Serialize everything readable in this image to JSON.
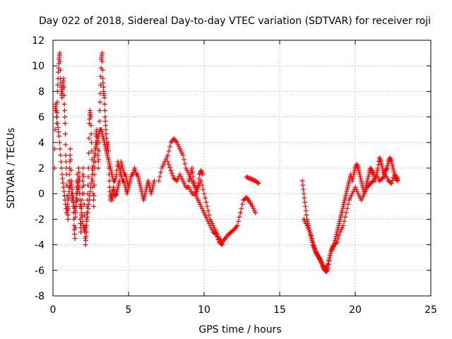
{
  "chart_data": {
    "type": "scatter",
    "title": "Day 022 of 2018, Sidereal Day-to-day VTEC variation (SDTVAR) for receiver roji",
    "xlabel": "GPS time / hours",
    "ylabel": "SDTVAR / TECUs",
    "xlim": [
      0,
      25
    ],
    "ylim": [
      -8,
      12
    ],
    "xticks": [
      0,
      5,
      10,
      15,
      20,
      25
    ],
    "yticks": [
      -8,
      -6,
      -4,
      -2,
      0,
      2,
      4,
      6,
      8,
      10,
      12
    ],
    "grid": true,
    "marker": "+",
    "series": [
      {
        "name": "SDTVAR",
        "color": "#ff0000",
        "segments": [
          {
            "x": [
              0.1,
              0.15,
              0.2,
              0.25,
              0.3,
              0.35,
              0.4,
              0.45,
              0.5,
              0.55,
              0.6,
              0.65,
              0.7,
              0.75,
              0.8,
              0.85,
              0.9,
              0.95,
              1.0,
              1.05,
              1.1,
              1.15,
              1.2,
              1.25,
              1.3,
              1.35,
              1.4,
              1.45,
              1.5,
              1.55,
              1.6,
              1.65,
              1.7,
              1.75,
              1.8,
              1.85,
              1.9,
              1.95,
              2.0,
              2.05,
              2.1,
              2.15,
              2.2,
              2.25,
              2.3,
              2.35,
              2.4,
              2.45,
              2.5,
              2.55,
              2.6,
              2.65,
              2.7,
              2.75,
              2.8,
              2.85,
              2.9,
              2.95,
              3.0,
              3.05,
              3.1,
              3.15,
              3.2,
              3.25,
              3.3,
              3.35,
              3.4,
              3.45,
              3.5,
              3.55,
              3.6,
              3.65,
              3.7,
              3.75,
              3.8,
              3.85,
              3.9,
              3.95,
              4.0,
              4.1,
              4.2,
              4.3,
              4.4,
              4.5,
              4.6,
              4.7,
              4.8,
              4.9,
              5.0
            ],
            "y": [
              2.0,
              6.5,
              7.0,
              5.5,
              8.0,
              9.5,
              10.5,
              11.0,
              9.0,
              8.0,
              7.5,
              8.5,
              9.0,
              7.0,
              5.5,
              3.0,
              1.5,
              -1.0,
              -2.0,
              0.5,
              2.0,
              3.5,
              1.0,
              -0.5,
              0.0,
              -1.0,
              -2.5,
              -3.5,
              -1.0,
              0.0,
              1.5,
              -0.5,
              2.0,
              1.0,
              -2.0,
              -3.0,
              -1.0,
              0.5,
              2.0,
              0.0,
              -2.5,
              -4.0,
              -3.0,
              -1.5,
              0.0,
              2.0,
              5.5,
              6.5,
              6.0,
              4.0,
              2.0,
              0.5,
              -1.0,
              1.5,
              3.0,
              4.5,
              5.0,
              3.5,
              2.0,
              4.0,
              6.5,
              8.5,
              10.5,
              11.0,
              9.0,
              8.0,
              7.5,
              6.0,
              5.0,
              4.0,
              3.5,
              4.0,
              2.0,
              0.5,
              -0.5,
              0.0,
              -0.5,
              0.0,
              0.5,
              -0.2,
              0.0,
              0.5,
              1.0,
              2.5,
              2.0,
              1.5,
              1.5,
              1.0,
              0.5
            ]
          },
          {
            "x": [
              0.2,
              0.3,
              0.4,
              0.5,
              0.6,
              0.7,
              0.8,
              0.9,
              1.0,
              1.1,
              1.2,
              1.3,
              1.4,
              1.5,
              1.6,
              1.7,
              1.8,
              1.9,
              2.0,
              2.1,
              2.2,
              2.3,
              2.4,
              2.5,
              2.6,
              2.7,
              2.8,
              2.9,
              3.0,
              3.1,
              3.2,
              3.3,
              3.4,
              3.5,
              3.6,
              3.7,
              3.8,
              3.9,
              4.0,
              4.1,
              4.2,
              4.3,
              4.4,
              4.5,
              4.6,
              4.7,
              4.8,
              4.9,
              5.0,
              5.1,
              5.2,
              5.3,
              5.4,
              5.5,
              5.6,
              5.7,
              5.8,
              5.9,
              6.0,
              6.1,
              6.2,
              6.3,
              6.4,
              6.5,
              6.6,
              6.7
            ],
            "y": [
              7.0,
              5.5,
              4.5,
              3.0,
              1.5,
              0.5,
              -0.5,
              -1.5,
              -0.5,
              0.5,
              1.0,
              0.0,
              -1.0,
              -1.5,
              0.0,
              1.0,
              -0.5,
              -1.5,
              -2.5,
              -3.0,
              -2.5,
              -1.5,
              -0.5,
              0.5,
              1.5,
              2.5,
              3.5,
              4.0,
              4.5,
              5.0,
              5.0,
              4.5,
              4.0,
              3.5,
              3.0,
              2.5,
              2.0,
              1.5,
              1.0,
              1.0,
              1.5,
              2.5,
              2.0,
              1.5,
              1.0,
              1.0,
              0.5,
              0.0,
              0.5,
              1.0,
              1.5,
              1.5,
              2.0,
              1.5,
              1.5,
              1.0,
              0.5,
              0.0,
              -0.5,
              0.0,
              0.5,
              1.0,
              0.5,
              0.0,
              0.5,
              1.0
            ]
          },
          {
            "x": [
              7.0,
              7.2,
              7.4,
              7.6,
              7.8,
              8.0,
              8.2,
              8.4,
              8.6,
              8.8,
              9.0,
              9.2,
              9.4,
              9.6,
              9.8,
              10.0,
              10.2,
              10.4,
              10.6,
              10.8,
              11.0,
              11.2,
              11.4,
              11.6,
              11.8,
              12.0,
              12.2,
              12.4,
              12.6,
              12.8,
              13.0,
              13.2,
              13.4
            ],
            "y": [
              1.0,
              2.0,
              2.5,
              3.0,
              4.0,
              4.3,
              4.0,
              3.5,
              3.0,
              2.0,
              1.5,
              1.0,
              0.5,
              0.5,
              1.0,
              0.0,
              -1.0,
              -2.0,
              -2.5,
              -3.0,
              -3.5,
              -3.8,
              -3.5,
              -3.2,
              -3.0,
              -2.8,
              -2.5,
              -1.5,
              -0.5,
              -0.3,
              -0.6,
              -1.0,
              -1.5
            ]
          },
          {
            "x": [
              7.6,
              7.8,
              8.0,
              8.2,
              8.4,
              8.6,
              8.8,
              9.0,
              9.2,
              9.4,
              9.6,
              9.8,
              10.0,
              10.2,
              10.4,
              10.6,
              10.8,
              11.0,
              11.2
            ],
            "y": [
              2.5,
              1.8,
              1.2,
              1.0,
              1.5,
              1.0,
              0.5,
              0.5,
              0.0,
              0.0,
              -0.5,
              -1.0,
              -1.5,
              -2.0,
              -2.5,
              -3.0,
              -3.2,
              -3.8,
              -4.0
            ]
          },
          {
            "x": [
              9.0,
              9.1,
              9.2,
              9.3,
              9.4,
              9.5,
              9.6,
              9.7,
              9.8,
              9.9
            ],
            "y": [
              1.0,
              1.5,
              2.0,
              1.0,
              0.5,
              0.0,
              0.5,
              1.5,
              1.8,
              1.5
            ]
          },
          {
            "x": [
              12.8,
              13.0,
              13.2,
              13.4,
              13.6
            ],
            "y": [
              1.3,
              1.2,
              1.1,
              1.0,
              0.8
            ]
          },
          {
            "x": [
              16.5,
              16.6,
              16.7,
              16.8,
              16.9,
              17.0,
              17.1,
              17.2,
              17.3,
              17.4,
              17.5,
              17.6,
              17.7,
              17.8,
              17.9,
              18.0,
              18.1,
              18.2,
              18.3,
              18.4,
              18.5,
              18.6,
              18.7,
              18.8,
              18.9,
              19.0,
              19.1,
              19.2,
              19.3,
              19.4,
              19.5,
              19.6,
              19.7,
              19.8,
              19.9,
              20.0,
              20.1,
              20.2,
              20.3,
              20.4,
              20.5,
              20.6,
              20.7,
              20.8,
              20.9,
              21.0,
              21.1,
              21.2,
              21.3,
              21.4,
              21.5,
              21.6,
              21.7,
              21.8,
              21.9,
              22.0,
              22.1,
              22.2,
              22.3,
              22.4,
              22.5,
              22.6,
              22.7,
              22.8
            ],
            "y": [
              1.0,
              0.0,
              -1.0,
              -2.0,
              -2.5,
              -3.0,
              -3.5,
              -4.0,
              -4.3,
              -4.6,
              -4.8,
              -5.0,
              -5.2,
              -5.5,
              -5.8,
              -6.0,
              -6.1,
              -5.8,
              -5.0,
              -4.5,
              -4.2,
              -4.0,
              -3.5,
              -3.0,
              -2.5,
              -2.0,
              -1.5,
              -1.0,
              -0.5,
              0.0,
              0.5,
              1.0,
              1.5,
              1.0,
              1.5,
              2.0,
              2.3,
              2.0,
              1.5,
              1.0,
              0.5,
              0.0,
              0.5,
              1.0,
              1.5,
              2.0,
              1.8,
              1.5,
              1.0,
              1.5,
              2.0,
              2.8,
              2.5,
              2.0,
              1.5,
              1.8,
              2.0,
              2.5,
              2.8,
              2.5,
              2.0,
              1.5,
              1.2,
              1.0
            ]
          },
          {
            "x": [
              16.6,
              16.8,
              17.0,
              17.2,
              17.4,
              17.6,
              17.8,
              18.0,
              18.2,
              18.4,
              18.6,
              18.8,
              19.0,
              19.2,
              19.4,
              19.6,
              19.8,
              20.0,
              20.2,
              20.4,
              20.6,
              20.8,
              21.0,
              21.2,
              21.4,
              21.6,
              21.8,
              22.0,
              22.2,
              22.4,
              22.6,
              22.8
            ],
            "y": [
              -2.0,
              -2.5,
              -3.0,
              -3.8,
              -4.5,
              -5.0,
              -5.5,
              -5.9,
              -5.5,
              -4.5,
              -4.0,
              -3.8,
              -3.0,
              -2.5,
              -1.5,
              -0.5,
              0.0,
              0.5,
              0.0,
              -0.5,
              0.0,
              0.5,
              0.8,
              1.0,
              1.5,
              1.0,
              1.2,
              1.5,
              1.0,
              0.8,
              1.5,
              1.2
            ]
          }
        ]
      }
    ]
  }
}
